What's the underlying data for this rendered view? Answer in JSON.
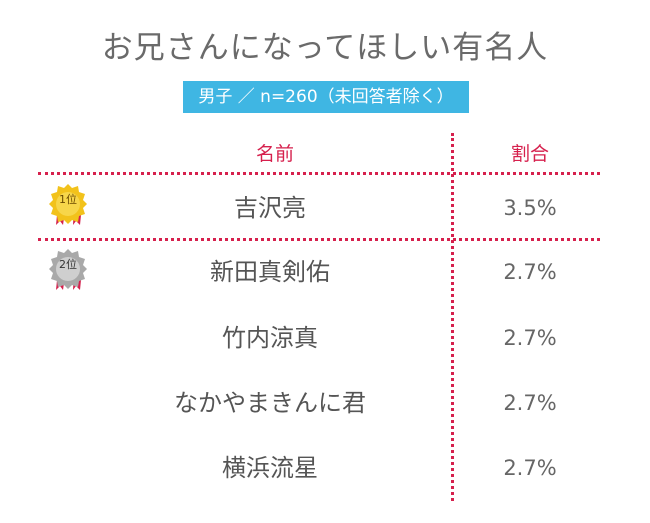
{
  "title": "お兄さんになってほしい有名人",
  "subtitle": "男子 ／ n=260（未回答者除く）",
  "headers": {
    "name": "名前",
    "ratio": "割合"
  },
  "ranks": {
    "first": "1位",
    "second": "2位"
  },
  "rows": [
    {
      "name": "吉沢亮",
      "ratio": "3.5%"
    },
    {
      "name": "新田真剣佑",
      "ratio": "2.7%"
    },
    {
      "name": "竹内涼真",
      "ratio": "2.7%"
    },
    {
      "name": "なかやまきんに君",
      "ratio": "2.7%"
    },
    {
      "name": "横浜流星",
      "ratio": "2.7%"
    }
  ],
  "colors": {
    "accent": "#d6204d",
    "banner": "#3fb6e3",
    "gold": "#f2c21b",
    "silver": "#b8b8b8"
  }
}
